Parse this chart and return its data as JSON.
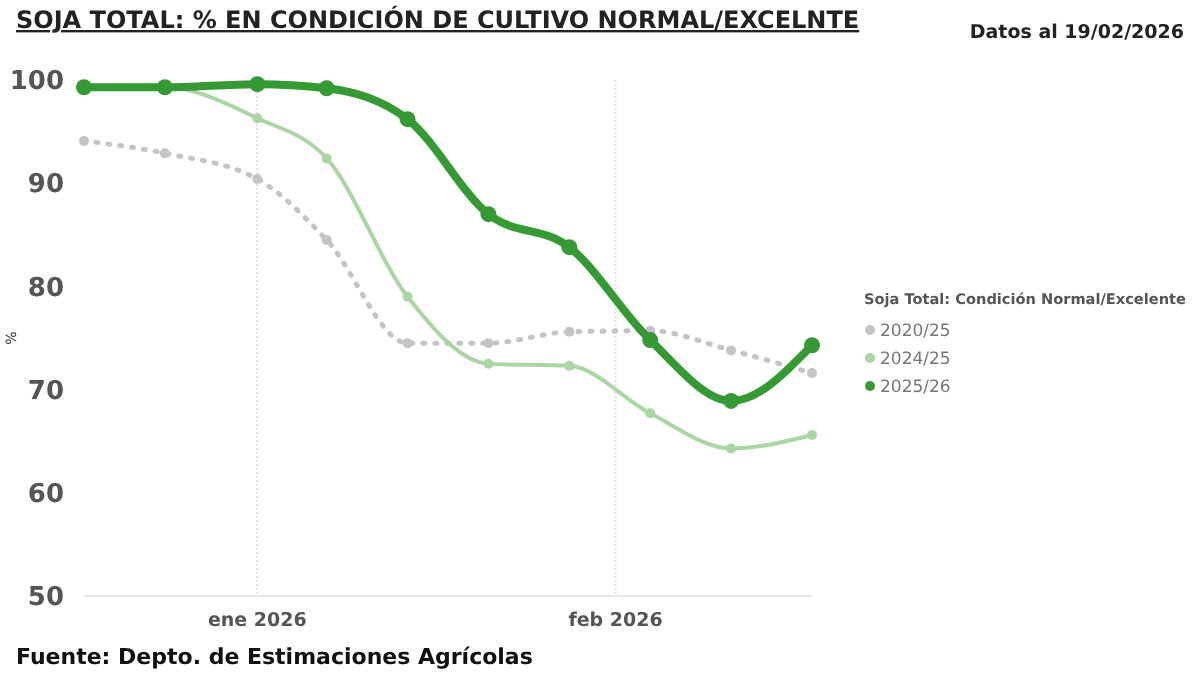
{
  "chart_data": {
    "type": "line",
    "title": "SOJA TOTAL: % EN CONDICIÓN DE CULTIVO NORMAL/EXCELNTE",
    "ylabel": "%",
    "legend_title": "Soja Total: Condición Normal/Excelente",
    "annotations": [
      "Datos al 19/02/2026",
      "Fuente: Depto. de Estimaciones Agrícolas"
    ],
    "x": [
      "2025-12-17",
      "2025-12-24",
      "2026-01-01",
      "2026-01-07",
      "2026-01-14",
      "2026-01-21",
      "2026-01-28",
      "2026-02-04",
      "2026-02-11",
      "2026-02-18"
    ],
    "series": [
      {
        "name": "2020/25",
        "color": "#c4c4c4",
        "line_style": "dotted",
        "values": [
          94.1,
          92.9,
          90.4,
          84.5,
          74.5,
          74.5,
          75.6,
          75.7,
          73.8,
          71.6
        ]
      },
      {
        "name": "2024/25",
        "color": "#a9d6a2",
        "values": [
          99.3,
          99.3,
          96.3,
          92.4,
          79,
          72.5,
          72.3,
          67.7,
          64.3,
          65.6
        ]
      },
      {
        "name": "2025/26",
        "color": "#359a33",
        "values": [
          99.3,
          99.3,
          99.6,
          99.2,
          96.2,
          87,
          83.8,
          74.8,
          68.9,
          74.3
        ]
      }
    ],
    "xlim": [
      "2025-12-17",
      "2026-02-18"
    ],
    "xticks": [
      {
        "value": "2026-01-01",
        "label": "ene 2026"
      },
      {
        "value": "2026-02-01",
        "label": "feb 2026"
      }
    ],
    "ylim": [
      50,
      100
    ],
    "yticks": [
      50,
      60,
      70,
      80,
      90,
      100
    ],
    "grid": "x",
    "legend": "right",
    "marker": "circle",
    "line_style": "solid"
  }
}
